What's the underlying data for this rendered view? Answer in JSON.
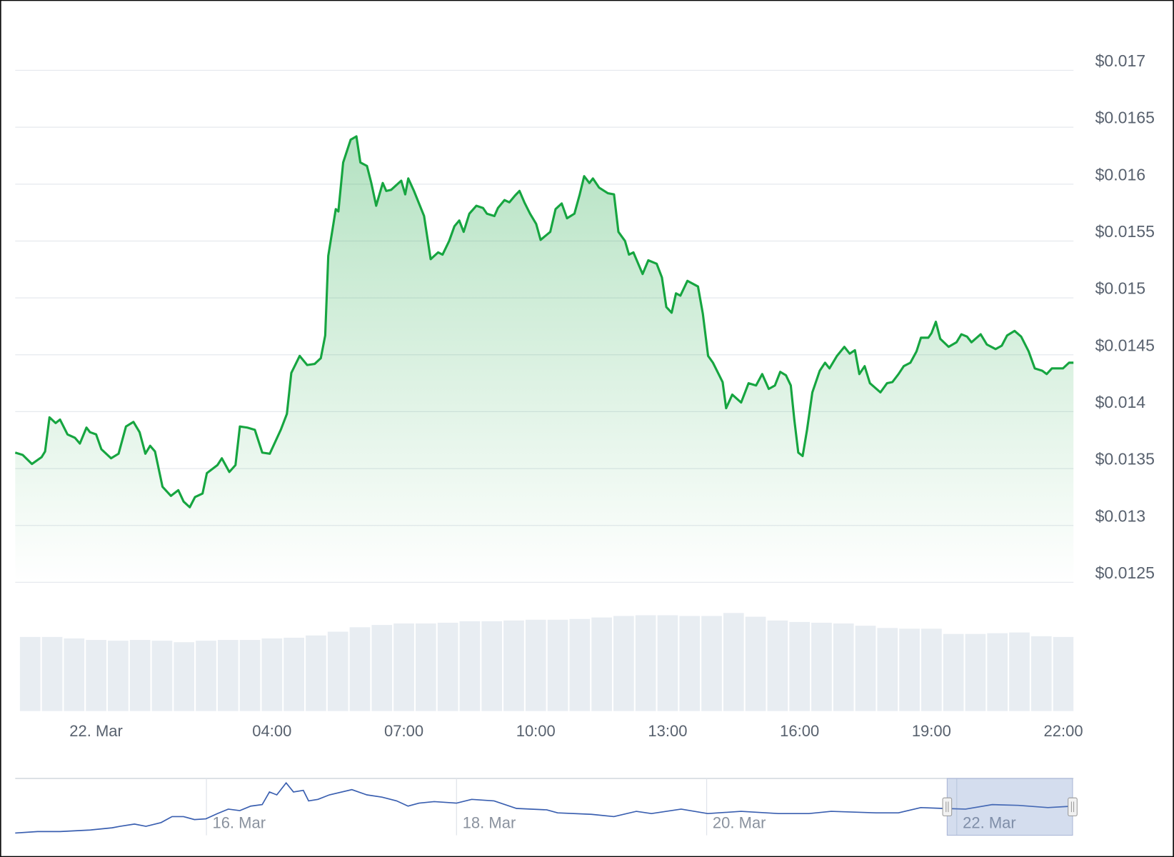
{
  "chart_data": {
    "type": "area",
    "x": [
      -1.84,
      -1.67,
      -1.46,
      -1.24,
      -1.16,
      -1.06,
      -0.92,
      -0.82,
      -0.65,
      -0.48,
      -0.37,
      -0.22,
      -0.14,
      0,
      0.12,
      0.34,
      0.51,
      0.68,
      0.85,
      0.99,
      1.12,
      1.23,
      1.34,
      1.51,
      1.7,
      1.87,
      1.99,
      2.13,
      2.25,
      2.42,
      2.52,
      2.76,
      2.86,
      3.03,
      3.17,
      3.27,
      3.44,
      3.61,
      3.78,
      3.95,
      4.2,
      4.34,
      4.44,
      4.63,
      4.8,
      4.97,
      5.11,
      5.21,
      5.28,
      5.45,
      5.51,
      5.62,
      5.79,
      5.92,
      6.01,
      6.16,
      6.26,
      6.37,
      6.52,
      6.6,
      6.71,
      6.94,
      7.03,
      7.1,
      7.23,
      7.46,
      7.61,
      7.78,
      7.88,
      8.03,
      8.15,
      8.26,
      8.36,
      8.49,
      8.65,
      8.8,
      8.89,
      9.06,
      9.14,
      9.29,
      9.4,
      9.53,
      9.63,
      9.74,
      9.87,
      10.01,
      10.11,
      10.33,
      10.45,
      10.59,
      10.71,
      10.88,
      11,
      11.1,
      11.22,
      11.3,
      11.44,
      11.64,
      11.78,
      11.88,
      12.03,
      12.12,
      12.22,
      12.43,
      12.56,
      12.75,
      12.87,
      12.97,
      13.09,
      13.19,
      13.29,
      13.45,
      13.69,
      13.8,
      13.92,
      14.03,
      14.16,
      14.25,
      14.33,
      14.47,
      14.67,
      14.84,
      15.01,
      15.15,
      15.3,
      15.44,
      15.56,
      15.69,
      15.8,
      15.88,
      15.97,
      16.07,
      16.17,
      16.29,
      16.46,
      16.58,
      16.68,
      16.85,
      17.02,
      17.14,
      17.26,
      17.36,
      17.48,
      17.6,
      17.84,
      17.99,
      18.11,
      18.25,
      18.37,
      18.52,
      18.66,
      18.76,
      18.93,
      19,
      19.1,
      19.2,
      19.39,
      19.57,
      19.68,
      19.81,
      19.91,
      20.12,
      20.26,
      20.46,
      20.6,
      20.72,
      20.89,
      21.04,
      21.21,
      21.35,
      21.52,
      21.62,
      21.74,
      21.99,
      22.13,
      22.23
    ],
    "series": [
      {
        "color": "#16a540",
        "values": [
          0.01364,
          0.01362,
          0.01354,
          0.0136,
          0.01365,
          0.01395,
          0.0139,
          0.01393,
          0.0138,
          0.01377,
          0.01372,
          0.01386,
          0.01382,
          0.0138,
          0.01367,
          0.01359,
          0.01363,
          0.01387,
          0.01391,
          0.01382,
          0.01363,
          0.0137,
          0.01365,
          0.01334,
          0.01326,
          0.01331,
          0.01321,
          0.01316,
          0.01325,
          0.01328,
          0.01346,
          0.01353,
          0.01359,
          0.01347,
          0.01353,
          0.01387,
          0.01386,
          0.01384,
          0.01364,
          0.01363,
          0.01384,
          0.01398,
          0.01434,
          0.01449,
          0.01441,
          0.01442,
          0.01447,
          0.01467,
          0.01537,
          0.01578,
          0.01576,
          0.01619,
          0.01639,
          0.01642,
          0.01619,
          0.01616,
          0.01601,
          0.01581,
          0.01601,
          0.01594,
          0.01595,
          0.01603,
          0.01591,
          0.01605,
          0.01594,
          0.01572,
          0.01534,
          0.0154,
          0.01538,
          0.0155,
          0.01563,
          0.01568,
          0.01558,
          0.01574,
          0.01581,
          0.01579,
          0.01574,
          0.01572,
          0.01579,
          0.01586,
          0.01584,
          0.0159,
          0.01594,
          0.01584,
          0.01574,
          0.01565,
          0.01551,
          0.01558,
          0.01578,
          0.01583,
          0.0157,
          0.01574,
          0.01591,
          0.01607,
          0.01601,
          0.01605,
          0.01597,
          0.01592,
          0.01591,
          0.01558,
          0.0155,
          0.01538,
          0.0154,
          0.01521,
          0.01533,
          0.0153,
          0.01518,
          0.01492,
          0.01487,
          0.01504,
          0.01502,
          0.01515,
          0.0151,
          0.01486,
          0.01449,
          0.01443,
          0.01433,
          0.01426,
          0.01403,
          0.01415,
          0.01408,
          0.01425,
          0.01423,
          0.01433,
          0.0142,
          0.01423,
          0.01435,
          0.01432,
          0.01423,
          0.01393,
          0.01364,
          0.01361,
          0.01384,
          0.01417,
          0.01436,
          0.01443,
          0.01438,
          0.01449,
          0.01457,
          0.01451,
          0.01454,
          0.01433,
          0.0144,
          0.01425,
          0.01417,
          0.01425,
          0.01426,
          0.01433,
          0.0144,
          0.01443,
          0.01453,
          0.01465,
          0.01465,
          0.01469,
          0.01479,
          0.01464,
          0.01457,
          0.01461,
          0.01468,
          0.01466,
          0.01461,
          0.01468,
          0.01459,
          0.01455,
          0.01458,
          0.01467,
          0.01471,
          0.01466,
          0.01453,
          0.01438,
          0.01436,
          0.01433,
          0.01438,
          0.01438,
          0.01443,
          0.01443
        ]
      }
    ],
    "xlim": [
      -1.84,
      22.23
    ],
    "xticks": [
      {
        "value": 0,
        "label": "22. Mar"
      },
      {
        "value": 4,
        "label": "04:00"
      },
      {
        "value": 7,
        "label": "07:00"
      },
      {
        "value": 10,
        "label": "10:00"
      },
      {
        "value": 13,
        "label": "13:00"
      },
      {
        "value": 16,
        "label": "16:00"
      },
      {
        "value": 19,
        "label": "19:00"
      },
      {
        "value": 22,
        "label": "22:00"
      }
    ],
    "ylim": [
      0.0125,
      0.0175
    ],
    "yticks": [
      {
        "value": 0.0125,
        "label": "$0.0125"
      },
      {
        "value": 0.013,
        "label": "$0.013"
      },
      {
        "value": 0.0135,
        "label": "$0.0135"
      },
      {
        "value": 0.014,
        "label": "$0.014"
      },
      {
        "value": 0.0145,
        "label": "$0.0145"
      },
      {
        "value": 0.015,
        "label": "$0.015"
      },
      {
        "value": 0.0155,
        "label": "$0.0155"
      },
      {
        "value": 0.016,
        "label": "$0.016"
      },
      {
        "value": 0.0165,
        "label": "$0.0165"
      },
      {
        "value": 0.017,
        "label": "$0.017"
      }
    ],
    "grid": true,
    "volume": {
      "color": "#e8edf2",
      "x": [
        -1.5,
        -1,
        -0.5,
        0,
        0.5,
        1,
        1.5,
        2,
        2.5,
        3,
        3.5,
        4,
        4.5,
        5,
        5.5,
        6,
        6.5,
        7,
        7.5,
        8,
        8.5,
        9,
        9.5,
        10,
        10.5,
        11,
        11.5,
        12,
        12.5,
        13,
        13.5,
        14,
        14.5,
        15,
        15.5,
        16,
        16.5,
        17,
        17.5,
        18,
        18.5,
        19,
        19.5,
        20,
        20.5,
        21,
        21.5,
        22
      ],
      "values": [
        99,
        99,
        97,
        95,
        94,
        95,
        94,
        92,
        94,
        95,
        95,
        97,
        98,
        101,
        106,
        112,
        115,
        117,
        117,
        118,
        120,
        120,
        121,
        122,
        122,
        123,
        125,
        127,
        128,
        128,
        127,
        127,
        131,
        126,
        121,
        119,
        118,
        117,
        114,
        111,
        110,
        110,
        103,
        103,
        104,
        105,
        100,
        99
      ],
      "ylim": [
        0,
        140
      ]
    },
    "navigator": {
      "color": "#3a5fb0",
      "x": [
        -180.7,
        -176.4,
        -172.1,
        -166.4,
        -162.1,
        -160.6,
        -157.8,
        -155.6,
        -152.7,
        -150.6,
        -148.4,
        -146.3,
        -144.1,
        -141.9,
        -139.8,
        -137.6,
        -135.5,
        -133.3,
        -131.9,
        -130.5,
        -128.7,
        -127.3,
        -125.4,
        -124.4,
        -122.6,
        -120.4,
        -116.1,
        -113.2,
        -110.3,
        -107.5,
        -105.3,
        -103.2,
        -100.3,
        -96,
        -93.1,
        -88.8,
        -84.5,
        -78.7,
        -76.6,
        -70.1,
        -65.8,
        -61.5,
        -58.6,
        -52.9,
        -47.8,
        -41.4,
        -34.2,
        -28.4,
        -24.1,
        -15.5,
        -11.2,
        -6.9,
        -2.6,
        1.7,
        6.8,
        11.8,
        17.5,
        22.4
      ],
      "values": [
        0.01034,
        0.01056,
        0.01056,
        0.01078,
        0.01112,
        0.01134,
        0.01168,
        0.01134,
        0.0119,
        0.0128,
        0.0128,
        0.01235,
        0.01246,
        0.01324,
        0.01391,
        0.01369,
        0.01436,
        0.01458,
        0.01648,
        0.01604,
        0.01783,
        0.01648,
        0.01671,
        0.01514,
        0.01537,
        0.01604,
        0.01682,
        0.01604,
        0.0157,
        0.01514,
        0.01436,
        0.01481,
        0.01503,
        0.01481,
        0.01537,
        0.01514,
        0.01402,
        0.0138,
        0.01335,
        0.01313,
        0.0128,
        0.01358,
        0.01324,
        0.01391,
        0.01324,
        0.01358,
        0.01324,
        0.01324,
        0.01358,
        0.01335,
        0.01335,
        0.01414,
        0.01402,
        0.01391,
        0.01458,
        0.01447,
        0.01414,
        0.01436
      ],
      "xlim": [
        -180.7,
        22.4
      ],
      "ylim": [
        0.01,
        0.0185
      ],
      "xticks": [
        {
          "value": -144,
          "label": "16. Mar"
        },
        {
          "value": -96,
          "label": "18. Mar"
        },
        {
          "value": -48,
          "label": "20. Mar"
        },
        {
          "value": 0,
          "label": "22. Mar"
        }
      ]
    }
  }
}
